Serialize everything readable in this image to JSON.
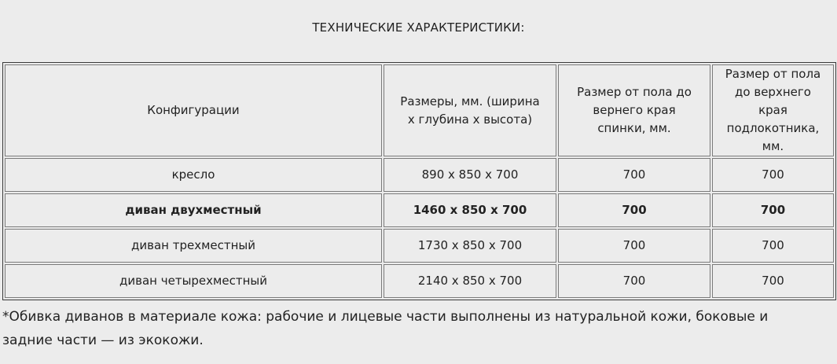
{
  "title": "ТЕХНИЧЕСКИЕ ХАРАКТЕРИСТИКИ:",
  "table": {
    "headers": [
      "Конфигурации",
      "Размеры, мм. (ширина х глубина х высота)",
      "Размер от пола до вернего края спинки, мм.",
      "Размер от пола до верхнего края подлокотника, мм."
    ],
    "rows": [
      {
        "bold": false,
        "cells": [
          "кресло",
          "890 х 850 х 700",
          "700",
          "700"
        ]
      },
      {
        "bold": true,
        "cells": [
          "диван двухместный",
          "1460 х 850 х 700",
          "700",
          "700"
        ]
      },
      {
        "bold": false,
        "cells": [
          "диван трехместный",
          "1730 х 850 х 700",
          "700",
          "700"
        ]
      },
      {
        "bold": false,
        "cells": [
          "диван четырехместный",
          "2140 х 850 х 700",
          "700",
          "700"
        ]
      }
    ]
  },
  "footnote": "*Обивка диванов в материале кожа: рабочие и лицевые части выполнены из натуральной кожи, боковые и задние части — из экокожи."
}
